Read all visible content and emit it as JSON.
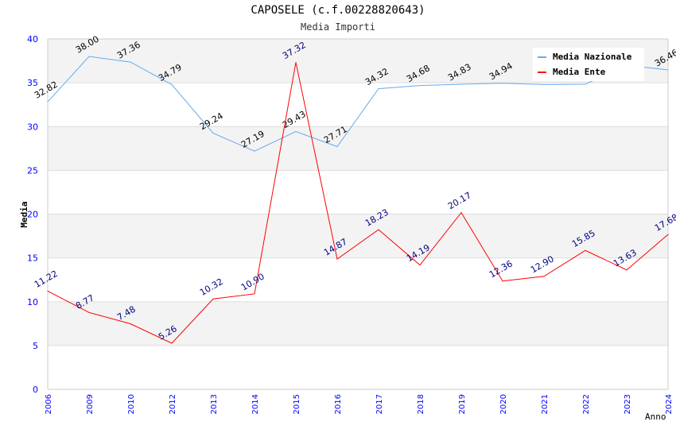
{
  "chart_data": {
    "type": "line",
    "title": "CAPOSELE (c.f.00228820643)",
    "subtitle": "Media Importi",
    "xlabel": "Anno",
    "ylabel": "Media",
    "ylim": [
      0,
      40
    ],
    "yticks": [
      "0",
      "5",
      "10",
      "15",
      "20",
      "25",
      "30",
      "35",
      "40"
    ],
    "categories": [
      "2006",
      "2009",
      "2010",
      "2012",
      "2013",
      "2014",
      "2015",
      "2016",
      "2017",
      "2018",
      "2019",
      "2020",
      "2021",
      "2022",
      "2023",
      "2024"
    ],
    "grid": true,
    "legend_position": "top-right",
    "series": [
      {
        "name": "Media Nazionale",
        "color": "#66aaee",
        "label_color": "#000000",
        "values": [
          32.82,
          38.0,
          37.36,
          34.79,
          29.24,
          27.19,
          29.43,
          27.71,
          34.32,
          34.68,
          34.83,
          34.94,
          34.8,
          34.83,
          37.0,
          36.46
        ],
        "labels": [
          "32.82",
          "38.00",
          "37.36",
          "34.79",
          "29.24",
          "27.19",
          "29.43",
          "27.71",
          "34.32",
          "34.68",
          "34.83",
          "34.94",
          "",
          "",
          "",
          "36.46"
        ]
      },
      {
        "name": "Media Ente",
        "color": "#ff0000",
        "label_color": "#000080",
        "values": [
          11.22,
          8.77,
          7.48,
          5.26,
          10.32,
          10.9,
          37.32,
          14.87,
          18.23,
          14.19,
          20.17,
          12.36,
          12.9,
          15.85,
          13.63,
          17.68
        ],
        "labels": [
          "11.22",
          "8.77",
          "7.48",
          "5.26",
          "10.32",
          "10.90",
          "37.32",
          "14.87",
          "18.23",
          "14.19",
          "20.17",
          "12.36",
          "12.90",
          "15.85",
          "13.63",
          "17.68"
        ]
      }
    ]
  }
}
